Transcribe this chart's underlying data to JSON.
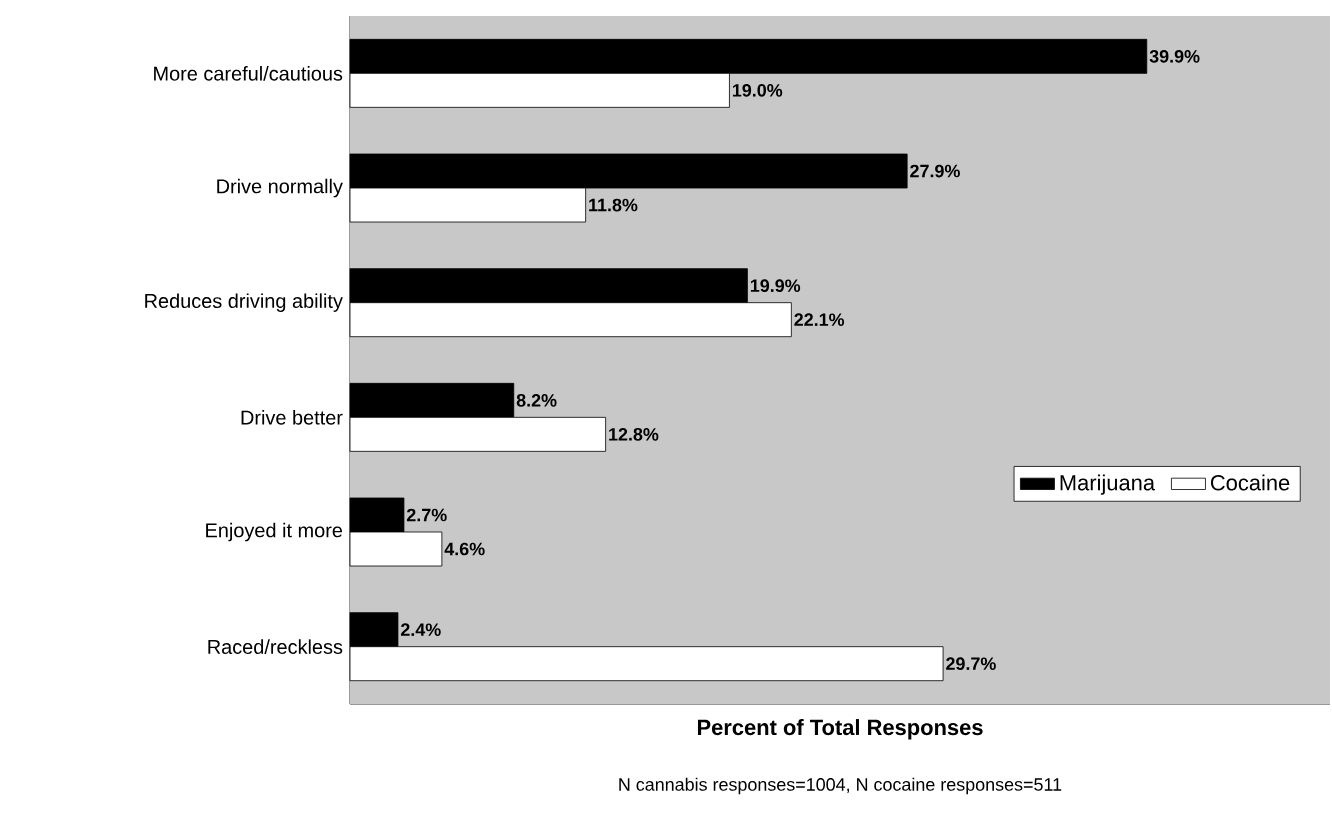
{
  "chart_data": {
    "type": "bar",
    "orientation": "horizontal",
    "xlabel": "Percent of Total Responses",
    "categories": [
      "More careful/cautious",
      "Drive normally",
      "Reduces driving ability",
      "Drive better",
      "Enjoyed it more",
      "Raced/reckless"
    ],
    "series": [
      {
        "name": "Marijuana",
        "color": "#000000",
        "values": [
          39.9,
          27.9,
          19.9,
          8.2,
          2.7,
          2.4
        ],
        "value_labels": [
          "39.9%",
          "27.9%",
          "19.9%",
          "8.2%",
          "2.7%",
          "2.4%"
        ]
      },
      {
        "name": "Cocaine",
        "color": "#ffffff",
        "values": [
          19.0,
          11.8,
          22.1,
          12.8,
          4.6,
          29.7
        ],
        "value_labels": [
          "19.0%",
          "11.8%",
          "22.1%",
          "12.8%",
          "4.6%",
          "29.7%"
        ]
      }
    ],
    "legend": "right",
    "tick_labels": "y",
    "annotations": [
      "N cannabis responses=1004, N cocaine responses=511"
    ]
  }
}
